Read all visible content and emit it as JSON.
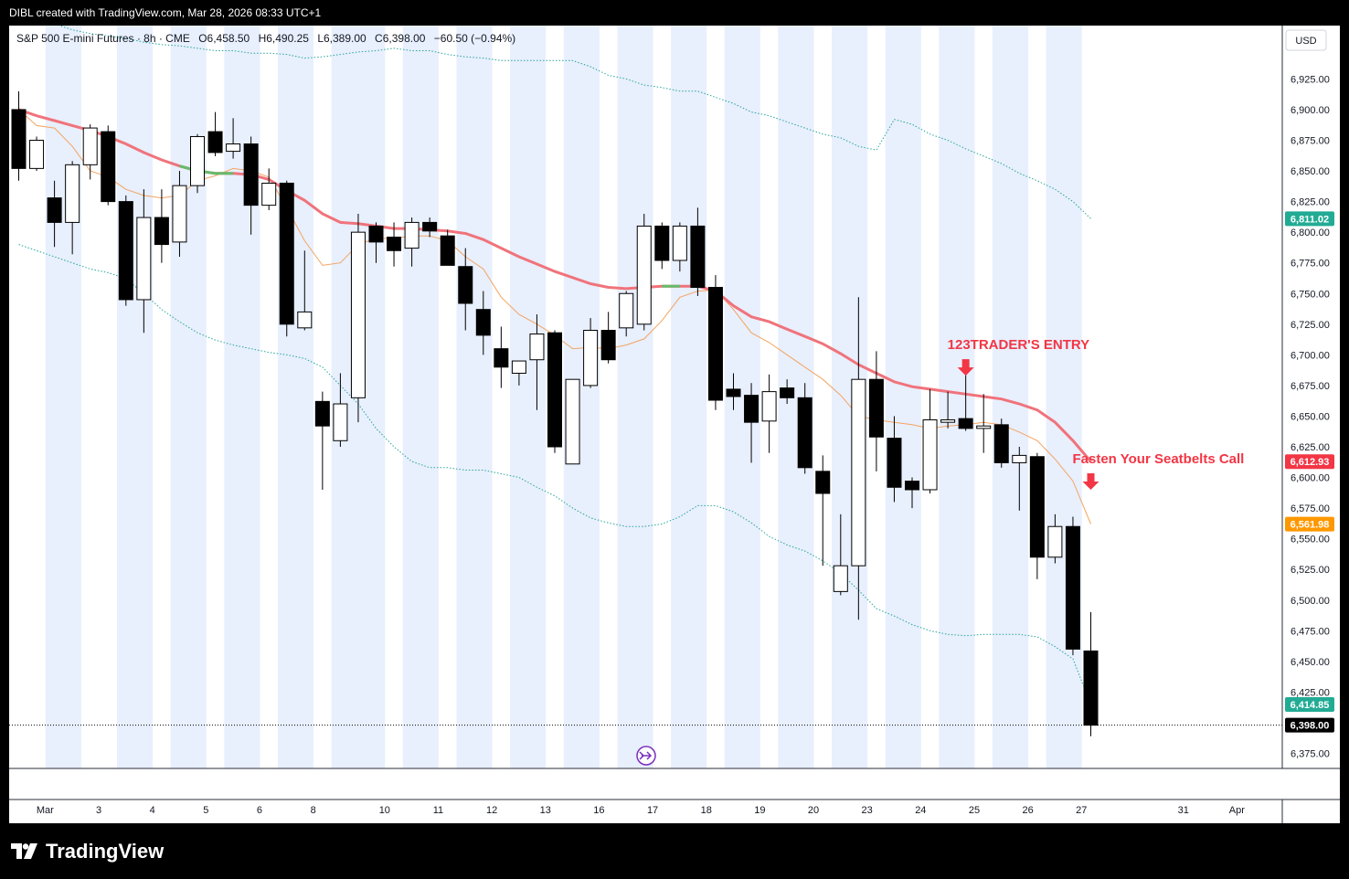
{
  "header": {
    "caption": "DIBL created with TradingView.com, Mar 28, 2026 08:33 UTC+1"
  },
  "legend": {
    "symbol": "S&P 500 E-mini Futures · 8h · CME",
    "open": "O6,458.50",
    "high": "H6,490.25",
    "low": "L6,389.00",
    "close": "C6,398.00",
    "change": "−60.50 (−0.94%)"
  },
  "currency_button": "USD",
  "brand": "TradingView",
  "annotations": {
    "entry": "123TRADER'S ENTRY",
    "seatbelt": "Fasten Your Seatbelts Call"
  },
  "price_tags": [
    {
      "value": "6,811.02",
      "price": 6811.02,
      "color": "#22ab94"
    },
    {
      "value": "6,612.93",
      "price": 6612.93,
      "color": "#f23645"
    },
    {
      "value": "6,561.98",
      "price": 6561.98,
      "color": "#ff9800"
    },
    {
      "value": "6,414.85",
      "price": 6414.85,
      "color": "#22ab94"
    },
    {
      "value": "6,398.00",
      "price": 6398.0,
      "color": "#000000"
    }
  ],
  "colors": {
    "up": "#ffffff",
    "down": "#000000",
    "session_shade": "#e8effd",
    "ema_slow": "#f0737b",
    "ema_fast": "#f4a460",
    "band": "#26a69a",
    "annotation": "#f23645"
  },
  "chart_data": {
    "type": "candlestick",
    "title": "S&P 500 E-mini Futures · 8h · CME",
    "ylim": [
      6360,
      6960
    ],
    "y_ticks": [
      6375,
      6400,
      6425,
      6450,
      6475,
      6500,
      6525,
      6550,
      6575,
      6600,
      6625,
      6650,
      6675,
      6700,
      6725,
      6750,
      6775,
      6800,
      6825,
      6850,
      6875,
      6900,
      6925
    ],
    "x_labels": [
      "Mar",
      "3",
      "4",
      "5",
      "6",
      "8",
      "10",
      "11",
      "12",
      "13",
      "16",
      "17",
      "18",
      "19",
      "20",
      "23",
      "24",
      "25",
      "26",
      "27",
      "31",
      "Apr"
    ],
    "label_bars": [
      2.5,
      5.5,
      8.5,
      11.5,
      14.5,
      17.5,
      21.5,
      24.5,
      27.5,
      30.5,
      33.5,
      36.5,
      39.5,
      42.5,
      45.5,
      48.5,
      51.5,
      54.5,
      57.5,
      60.5,
      66.2,
      69.2
    ],
    "candles": [
      {
        "o": 6900,
        "h": 6915,
        "l": 6842,
        "c": 6852
      },
      {
        "o": 6852,
        "h": 6878,
        "l": 6850,
        "c": 6875
      },
      {
        "o": 6828,
        "h": 6842,
        "l": 6788,
        "c": 6808
      },
      {
        "o": 6808,
        "h": 6858,
        "l": 6782,
        "c": 6855
      },
      {
        "o": 6855,
        "h": 6888,
        "l": 6843,
        "c": 6885
      },
      {
        "o": 6882,
        "h": 6887,
        "l": 6822,
        "c": 6825
      },
      {
        "o": 6825,
        "h": 6830,
        "l": 6740,
        "c": 6745
      },
      {
        "o": 6745,
        "h": 6835,
        "l": 6718,
        "c": 6812
      },
      {
        "o": 6812,
        "h": 6835,
        "l": 6775,
        "c": 6790
      },
      {
        "o": 6792,
        "h": 6850,
        "l": 6780,
        "c": 6838
      },
      {
        "o": 6838,
        "h": 6880,
        "l": 6832,
        "c": 6878
      },
      {
        "o": 6882,
        "h": 6898,
        "l": 6862,
        "c": 6865
      },
      {
        "o": 6866,
        "h": 6893,
        "l": 6860,
        "c": 6872
      },
      {
        "o": 6872,
        "h": 6878,
        "l": 6798,
        "c": 6822
      },
      {
        "o": 6822,
        "h": 6852,
        "l": 6818,
        "c": 6840
      },
      {
        "o": 6840,
        "h": 6842,
        "l": 6715,
        "c": 6725
      },
      {
        "o": 6722,
        "h": 6785,
        "l": 6720,
        "c": 6735
      },
      {
        "o": 6662,
        "h": 6670,
        "l": 6590,
        "c": 6642
      },
      {
        "o": 6630,
        "h": 6685,
        "l": 6625,
        "c": 6660
      },
      {
        "o": 6665,
        "h": 6815,
        "l": 6645,
        "c": 6800
      },
      {
        "o": 6805,
        "h": 6808,
        "l": 6775,
        "c": 6792
      },
      {
        "o": 6796,
        "h": 6808,
        "l": 6772,
        "c": 6785
      },
      {
        "o": 6787,
        "h": 6812,
        "l": 6772,
        "c": 6808
      },
      {
        "o": 6808,
        "h": 6812,
        "l": 6796,
        "c": 6801
      },
      {
        "o": 6797,
        "h": 6802,
        "l": 6775,
        "c": 6773
      },
      {
        "o": 6772,
        "h": 6787,
        "l": 6720,
        "c": 6742
      },
      {
        "o": 6737,
        "h": 6752,
        "l": 6700,
        "c": 6716
      },
      {
        "o": 6705,
        "h": 6723,
        "l": 6673,
        "c": 6690
      },
      {
        "o": 6685,
        "h": 6695,
        "l": 6675,
        "c": 6695
      },
      {
        "o": 6696,
        "h": 6733,
        "l": 6655,
        "c": 6717
      },
      {
        "o": 6718,
        "h": 6720,
        "l": 6620,
        "c": 6625
      },
      {
        "o": 6611,
        "h": 6680,
        "l": 6611,
        "c": 6680
      },
      {
        "o": 6675,
        "h": 6730,
        "l": 6673,
        "c": 6720
      },
      {
        "o": 6720,
        "h": 6735,
        "l": 6693,
        "c": 6696
      },
      {
        "o": 6722,
        "h": 6752,
        "l": 6715,
        "c": 6750
      },
      {
        "o": 6725,
        "h": 6815,
        "l": 6720,
        "c": 6805
      },
      {
        "o": 6805,
        "h": 6808,
        "l": 6770,
        "c": 6777
      },
      {
        "o": 6777,
        "h": 6808,
        "l": 6768,
        "c": 6805
      },
      {
        "o": 6805,
        "h": 6820,
        "l": 6748,
        "c": 6755
      },
      {
        "o": 6755,
        "h": 6765,
        "l": 6655,
        "c": 6663
      },
      {
        "o": 6672,
        "h": 6685,
        "l": 6655,
        "c": 6666
      },
      {
        "o": 6667,
        "h": 6677,
        "l": 6612,
        "c": 6645
      },
      {
        "o": 6646,
        "h": 6684,
        "l": 6620,
        "c": 6670
      },
      {
        "o": 6673,
        "h": 6680,
        "l": 6660,
        "c": 6665
      },
      {
        "o": 6665,
        "h": 6677,
        "l": 6603,
        "c": 6608
      },
      {
        "o": 6605,
        "h": 6618,
        "l": 6528,
        "c": 6587
      },
      {
        "o": 6507,
        "h": 6570,
        "l": 6504,
        "c": 6528
      },
      {
        "o": 6528,
        "h": 6747,
        "l": 6484,
        "c": 6680
      },
      {
        "o": 6680,
        "h": 6703,
        "l": 6605,
        "c": 6633
      },
      {
        "o": 6632,
        "h": 6650,
        "l": 6580,
        "c": 6592
      },
      {
        "o": 6597,
        "h": 6600,
        "l": 6575,
        "c": 6590
      },
      {
        "o": 6590,
        "h": 6672,
        "l": 6587,
        "c": 6647
      },
      {
        "o": 6645,
        "h": 6670,
        "l": 6640,
        "c": 6647
      },
      {
        "o": 6648,
        "h": 6685,
        "l": 6638,
        "c": 6640
      },
      {
        "o": 6640,
        "h": 6668,
        "l": 6620,
        "c": 6642
      },
      {
        "o": 6643,
        "h": 6648,
        "l": 6608,
        "c": 6612
      },
      {
        "o": 6612,
        "h": 6625,
        "l": 6573,
        "c": 6618
      },
      {
        "o": 6617,
        "h": 6620,
        "l": 6517,
        "c": 6535
      },
      {
        "o": 6535,
        "h": 6570,
        "l": 6530,
        "c": 6560
      },
      {
        "o": 6560,
        "h": 6568,
        "l": 6455,
        "c": 6460
      },
      {
        "o": 6458.5,
        "h": 6490.25,
        "l": 6389,
        "c": 6398
      }
    ],
    "ema_slow": [
      6900,
      6895,
      6891,
      6887,
      6883,
      6878,
      6872,
      6865,
      6859,
      6854,
      6850,
      6848,
      6848,
      6847,
      6843,
      6834,
      6826,
      6815,
      6808,
      6807,
      6805,
      6803,
      6803,
      6802,
      6801,
      6799,
      6794,
      6787,
      6780,
      6774,
      6768,
      6763,
      6758,
      6755,
      6754,
      6755,
      6756,
      6756,
      6756,
      6752,
      6740,
      6731,
      6727,
      6721,
      6715,
      6709,
      6701,
      6692,
      6685,
      6678,
      6674,
      6672,
      6670,
      6668,
      6666,
      6664,
      6660,
      6655,
      6645,
      6630,
      6613
    ],
    "ema_fast": [
      6900,
      6887,
      6885,
      6870,
      6850,
      6845,
      6835,
      6830,
      6828,
      6830,
      6842,
      6846,
      6852,
      6850,
      6845,
      6820,
      6793,
      6773,
      6775,
      6790,
      6795,
      6795,
      6797,
      6797,
      6793,
      6780,
      6770,
      6747,
      6733,
      6725,
      6716,
      6705,
      6706,
      6705,
      6708,
      6713,
      6728,
      6747,
      6752,
      6753,
      6737,
      6718,
      6710,
      6700,
      6690,
      6680,
      6667,
      6650,
      6647,
      6645,
      6643,
      6640,
      6642,
      6643,
      6645,
      6643,
      6637,
      6630,
      6615,
      6597,
      6562
    ],
    "band_upper": [
      6980,
      6975,
      6970,
      6965,
      6962,
      6960,
      6958,
      6955,
      6953,
      6952,
      6950,
      6948,
      6948,
      6946,
      6946,
      6945,
      6942,
      6943,
      6945,
      6947,
      6948,
      6950,
      6948,
      6948,
      6945,
      6943,
      6942,
      6940,
      6940,
      6940,
      6940,
      6940,
      6935,
      6928,
      6925,
      6920,
      6918,
      6915,
      6915,
      6910,
      6905,
      6898,
      6895,
      6890,
      6885,
      6880,
      6877,
      6870,
      6867,
      6892,
      6888,
      6880,
      6875,
      6868,
      6862,
      6856,
      6848,
      6842,
      6835,
      6825,
      6811
    ],
    "band_lower": [
      6790,
      6785,
      6780,
      6775,
      6770,
      6767,
      6762,
      6750,
      6737,
      6727,
      6718,
      6712,
      6708,
      6705,
      6702,
      6700,
      6697,
      6690,
      6675,
      6660,
      6640,
      6625,
      6613,
      6608,
      6608,
      6606,
      6606,
      6603,
      6600,
      6592,
      6585,
      6575,
      6567,
      6563,
      6560,
      6560,
      6562,
      6568,
      6577,
      6577,
      6572,
      6563,
      6552,
      6545,
      6540,
      6532,
      6522,
      6508,
      6493,
      6487,
      6480,
      6475,
      6472,
      6471,
      6472,
      6472,
      6472,
      6470,
      6462,
      6452,
      6414.85
    ],
    "highlight_green_bars": [
      [
        9,
        12
      ],
      [
        36,
        37
      ]
    ],
    "session_shade_bars": [
      [
        1.5,
        3.5
      ],
      [
        5.5,
        7.5
      ],
      [
        8.5,
        10.5
      ],
      [
        11.5,
        13.5
      ],
      [
        14.5,
        16.5
      ],
      [
        17.5,
        20.5
      ],
      [
        21.5,
        23.5
      ],
      [
        24.5,
        26.5
      ],
      [
        27.5,
        29.5
      ],
      [
        30.5,
        32.5
      ],
      [
        33.5,
        35.5
      ],
      [
        36.5,
        38.5
      ],
      [
        39.5,
        41.5
      ],
      [
        42.5,
        44.5
      ],
      [
        45.5,
        47.5
      ],
      [
        48.5,
        50.5
      ],
      [
        51.5,
        53.5
      ],
      [
        54.5,
        56.5
      ],
      [
        57.5,
        59.5
      ]
    ],
    "last_price": 6398.0,
    "entry_arrow_bar": 53,
    "entry_arrow_price": 6683,
    "seatbelt_arrow_bar": 60,
    "seatbelt_arrow_price": 6590
  }
}
